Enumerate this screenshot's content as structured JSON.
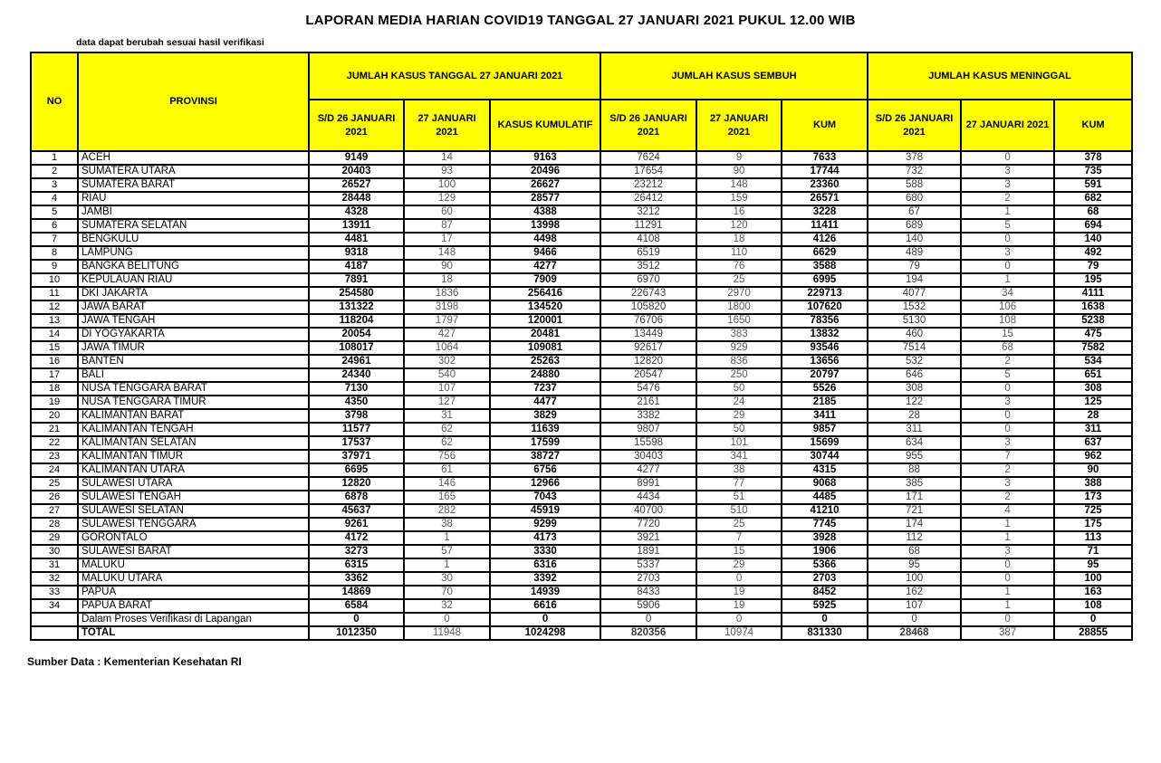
{
  "page": {
    "title": "LAPORAN MEDIA HARIAN COVID19 TANGGAL 27 JANUARI 2021 PUKUL 12.00 WIB",
    "note": "data dapat berubah sesuai hasil verifikasi",
    "source": "Sumber Data : Kementerian Kesehatan RI"
  },
  "colors": {
    "header_bg": "#FFFF00",
    "border": "#000000",
    "bold_text": "#000000",
    "muted_text": "#595959"
  },
  "table": {
    "header": {
      "no": "NO",
      "provinsi": "PROVINSI",
      "groups": [
        {
          "label": "JUMLAH KASUS TANGGAL 27 JANUARI 2021",
          "sub": [
            "S/D 26 JANUARI 2021",
            "27 JANUARI 2021",
            "KASUS KUMULATIF"
          ]
        },
        {
          "label": "JUMLAH KASUS SEMBUH",
          "sub": [
            "S/D 26 JANUARI 2021",
            "27 JANUARI 2021",
            "KUM"
          ]
        },
        {
          "label": "JUMLAH KASUS MENINGGAL",
          "sub": [
            "S/D 26 JANUARI 2021",
            "27 JANUARI 2021",
            "KUM"
          ]
        }
      ]
    },
    "rows": [
      {
        "no": "1",
        "provinsi": "ACEH",
        "values": [
          9149,
          14,
          9163,
          7624,
          9,
          7633,
          378,
          0,
          378
        ]
      },
      {
        "no": "2",
        "provinsi": "SUMATERA UTARA",
        "values": [
          20403,
          93,
          20496,
          17654,
          90,
          17744,
          732,
          3,
          735
        ]
      },
      {
        "no": "3",
        "provinsi": "SUMATERA BARAT",
        "values": [
          26527,
          100,
          26627,
          23212,
          148,
          23360,
          588,
          3,
          591
        ]
      },
      {
        "no": "4",
        "provinsi": "RIAU",
        "values": [
          28448,
          129,
          28577,
          26412,
          159,
          26571,
          680,
          2,
          682
        ]
      },
      {
        "no": "5",
        "provinsi": "JAMBI",
        "values": [
          4328,
          60,
          4388,
          3212,
          16,
          3228,
          67,
          1,
          68
        ]
      },
      {
        "no": "6",
        "provinsi": "SUMATERA SELATAN",
        "values": [
          13911,
          87,
          13998,
          11291,
          120,
          11411,
          689,
          5,
          694
        ]
      },
      {
        "no": "7",
        "provinsi": "BENGKULU",
        "values": [
          4481,
          17,
          4498,
          4108,
          18,
          4126,
          140,
          0,
          140
        ]
      },
      {
        "no": "8",
        "provinsi": "LAMPUNG",
        "values": [
          9318,
          148,
          9466,
          6519,
          110,
          6629,
          489,
          3,
          492
        ]
      },
      {
        "no": "9",
        "provinsi": "BANGKA BELITUNG",
        "values": [
          4187,
          90,
          4277,
          3512,
          76,
          3588,
          79,
          0,
          79
        ]
      },
      {
        "no": "10",
        "provinsi": "KEPULAUAN RIAU",
        "values": [
          7891,
          18,
          7909,
          6970,
          25,
          6995,
          194,
          1,
          195
        ]
      },
      {
        "no": "11",
        "provinsi": "DKI JAKARTA",
        "values": [
          254580,
          1836,
          256416,
          226743,
          2970,
          229713,
          4077,
          34,
          4111
        ]
      },
      {
        "no": "12",
        "provinsi": "JAWA BARAT",
        "values": [
          131322,
          3198,
          134520,
          105820,
          1800,
          107620,
          1532,
          106,
          1638
        ]
      },
      {
        "no": "13",
        "provinsi": "JAWA TENGAH",
        "values": [
          118204,
          1797,
          120001,
          76706,
          1650,
          78356,
          5130,
          108,
          5238
        ]
      },
      {
        "no": "14",
        "provinsi": "DI YOGYAKARTA",
        "values": [
          20054,
          427,
          20481,
          13449,
          383,
          13832,
          460,
          15,
          475
        ]
      },
      {
        "no": "15",
        "provinsi": "JAWA TIMUR",
        "values": [
          108017,
          1064,
          109081,
          92617,
          929,
          93546,
          7514,
          68,
          7582
        ]
      },
      {
        "no": "16",
        "provinsi": "BANTEN",
        "values": [
          24961,
          302,
          25263,
          12820,
          836,
          13656,
          532,
          2,
          534
        ]
      },
      {
        "no": "17",
        "provinsi": "BALI",
        "values": [
          24340,
          540,
          24880,
          20547,
          250,
          20797,
          646,
          5,
          651
        ]
      },
      {
        "no": "18",
        "provinsi": "NUSA TENGGARA BARAT",
        "values": [
          7130,
          107,
          7237,
          5476,
          50,
          5526,
          308,
          0,
          308
        ]
      },
      {
        "no": "19",
        "provinsi": "NUSA TENGGARA TIMUR",
        "values": [
          4350,
          127,
          4477,
          2161,
          24,
          2185,
          122,
          3,
          125
        ]
      },
      {
        "no": "20",
        "provinsi": "KALIMANTAN BARAT",
        "values": [
          3798,
          31,
          3829,
          3382,
          29,
          3411,
          28,
          0,
          28
        ]
      },
      {
        "no": "21",
        "provinsi": "KALIMANTAN TENGAH",
        "values": [
          11577,
          62,
          11639,
          9807,
          50,
          9857,
          311,
          0,
          311
        ]
      },
      {
        "no": "22",
        "provinsi": "KALIMANTAN SELATAN",
        "values": [
          17537,
          62,
          17599,
          15598,
          101,
          15699,
          634,
          3,
          637
        ]
      },
      {
        "no": "23",
        "provinsi": "KALIMANTAN TIMUR",
        "values": [
          37971,
          756,
          38727,
          30403,
          341,
          30744,
          955,
          7,
          962
        ]
      },
      {
        "no": "24",
        "provinsi": "KALIMANTAN UTARA",
        "values": [
          6695,
          61,
          6756,
          4277,
          38,
          4315,
          88,
          2,
          90
        ]
      },
      {
        "no": "25",
        "provinsi": "SULAWESI UTARA",
        "values": [
          12820,
          146,
          12966,
          8991,
          77,
          9068,
          385,
          3,
          388
        ]
      },
      {
        "no": "26",
        "provinsi": "SULAWESI TENGAH",
        "values": [
          6878,
          165,
          7043,
          4434,
          51,
          4485,
          171,
          2,
          173
        ]
      },
      {
        "no": "27",
        "provinsi": "SULAWESI SELATAN",
        "values": [
          45637,
          282,
          45919,
          40700,
          510,
          41210,
          721,
          4,
          725
        ]
      },
      {
        "no": "28",
        "provinsi": "SULAWESI TENGGARA",
        "values": [
          9261,
          38,
          9299,
          7720,
          25,
          7745,
          174,
          1,
          175
        ]
      },
      {
        "no": "29",
        "provinsi": "GORONTALO",
        "values": [
          4172,
          1,
          4173,
          3921,
          7,
          3928,
          112,
          1,
          113
        ]
      },
      {
        "no": "30",
        "provinsi": "SULAWESI BARAT",
        "values": [
          3273,
          57,
          3330,
          1891,
          15,
          1906,
          68,
          3,
          71
        ]
      },
      {
        "no": "31",
        "provinsi": "MALUKU",
        "values": [
          6315,
          1,
          6316,
          5337,
          29,
          5366,
          95,
          0,
          95
        ]
      },
      {
        "no": "32",
        "provinsi": "MALUKU UTARA",
        "values": [
          3362,
          30,
          3392,
          2703,
          0,
          2703,
          100,
          0,
          100
        ]
      },
      {
        "no": "33",
        "provinsi": "PAPUA",
        "values": [
          14869,
          70,
          14939,
          8433,
          19,
          8452,
          162,
          1,
          163
        ]
      },
      {
        "no": "34",
        "provinsi": "PAPUA BARAT",
        "values": [
          6584,
          32,
          6616,
          5906,
          19,
          5925,
          107,
          1,
          108
        ]
      },
      {
        "no": "",
        "provinsi": "Dalam Proses Verifikasi di Lapangan",
        "values": [
          0,
          0,
          0,
          0,
          0,
          0,
          0,
          0,
          0
        ]
      },
      {
        "no": "",
        "provinsi": "TOTAL",
        "total": true,
        "values": [
          1012350,
          11948,
          1024298,
          820356,
          10974,
          831330,
          28468,
          387,
          28855
        ]
      }
    ]
  }
}
